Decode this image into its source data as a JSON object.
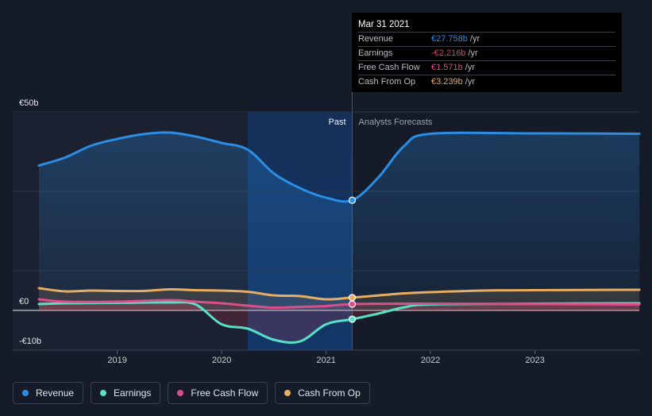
{
  "chart_data": {
    "type": "line",
    "x_unit": "year",
    "x_range": [
      2018.0,
      2024.0
    ],
    "ylim": [
      -10,
      50
    ],
    "y_ticks": [
      {
        "value": 50,
        "label": "€50b"
      },
      {
        "value": 0,
        "label": "€0"
      },
      {
        "value": -10,
        "label": "-€10b"
      }
    ],
    "x_ticks": [
      {
        "value": 2019,
        "label": "2019"
      },
      {
        "value": 2020,
        "label": "2020"
      },
      {
        "value": 2021,
        "label": "2021"
      },
      {
        "value": 2022,
        "label": "2022"
      },
      {
        "value": 2023,
        "label": "2023"
      }
    ],
    "past_label": "Past",
    "forecast_label": "Analysts Forecasts",
    "past_end": 2021.25,
    "highlight_start": 2020.25,
    "series": [
      {
        "name": "Revenue",
        "color": "#2b8de3",
        "points": [
          [
            2018.25,
            36.5
          ],
          [
            2018.5,
            38.5
          ],
          [
            2018.75,
            41.5
          ],
          [
            2019.0,
            43.2
          ],
          [
            2019.25,
            44.4
          ],
          [
            2019.5,
            44.8
          ],
          [
            2019.75,
            43.8
          ],
          [
            2020.0,
            42.2
          ],
          [
            2020.25,
            40.5
          ],
          [
            2020.5,
            34.5
          ],
          [
            2020.75,
            30.8
          ],
          [
            2021.0,
            28.4
          ],
          [
            2021.25,
            27.758
          ],
          [
            2021.5,
            33.5
          ],
          [
            2021.75,
            41.5
          ],
          [
            2022.0,
            44.5
          ],
          [
            2023.0,
            44.6
          ],
          [
            2024.0,
            44.5
          ]
        ]
      },
      {
        "name": "Earnings",
        "color": "#57e0c6",
        "points": [
          [
            2018.25,
            1.6
          ],
          [
            2018.5,
            1.8
          ],
          [
            2019.0,
            1.9
          ],
          [
            2019.5,
            2.0
          ],
          [
            2019.75,
            1.5
          ],
          [
            2020.0,
            -3.5
          ],
          [
            2020.25,
            -4.6
          ],
          [
            2020.5,
            -7.4
          ],
          [
            2020.75,
            -7.8
          ],
          [
            2021.0,
            -3.5
          ],
          [
            2021.25,
            -2.216
          ],
          [
            2021.5,
            -0.8
          ],
          [
            2021.75,
            0.8
          ],
          [
            2022.0,
            1.5
          ],
          [
            2023.0,
            1.7
          ],
          [
            2024.0,
            1.8
          ]
        ]
      },
      {
        "name": "Free Cash Flow",
        "color": "#d94f8b",
        "points": [
          [
            2018.25,
            2.8
          ],
          [
            2018.5,
            2.2
          ],
          [
            2019.0,
            2.2
          ],
          [
            2019.5,
            2.6
          ],
          [
            2019.75,
            2.2
          ],
          [
            2020.0,
            1.8
          ],
          [
            2020.25,
            1.2
          ],
          [
            2020.5,
            0.7
          ],
          [
            2020.75,
            0.9
          ],
          [
            2021.0,
            1.1
          ],
          [
            2021.25,
            1.571
          ],
          [
            2021.75,
            1.7
          ],
          [
            2022.0,
            1.7
          ],
          [
            2023.0,
            1.6
          ],
          [
            2024.0,
            1.5
          ]
        ]
      },
      {
        "name": "Cash From Op",
        "color": "#e7ad62",
        "points": [
          [
            2018.25,
            5.6
          ],
          [
            2018.5,
            4.8
          ],
          [
            2018.75,
            5.0
          ],
          [
            2019.0,
            4.9
          ],
          [
            2019.25,
            4.9
          ],
          [
            2019.5,
            5.3
          ],
          [
            2019.75,
            5.1
          ],
          [
            2020.0,
            5.0
          ],
          [
            2020.25,
            4.7
          ],
          [
            2020.5,
            3.8
          ],
          [
            2020.75,
            3.6
          ],
          [
            2021.0,
            2.8
          ],
          [
            2021.25,
            3.239
          ],
          [
            2021.75,
            4.3
          ],
          [
            2022.0,
            4.6
          ],
          [
            2022.5,
            5.0
          ],
          [
            2023.0,
            5.1
          ],
          [
            2024.0,
            5.2
          ]
        ]
      }
    ]
  },
  "tooltip": {
    "date": "Mar 31 2021",
    "rows": [
      {
        "label": "Revenue",
        "value": "€27.758b",
        "unit": "/yr",
        "color": "#2b8de3"
      },
      {
        "label": "Earnings",
        "value": "-€2.216b",
        "unit": "/yr",
        "color": "#e2454f"
      },
      {
        "label": "Free Cash Flow",
        "value": "€1.571b",
        "unit": "/yr",
        "color": "#d94f8b"
      },
      {
        "label": "Cash From Op",
        "value": "€3.239b",
        "unit": "/yr",
        "color": "#e7ad62"
      }
    ]
  },
  "legend": [
    {
      "label": "Revenue",
      "color": "#2b8de3"
    },
    {
      "label": "Earnings",
      "color": "#57e0c6"
    },
    {
      "label": "Free Cash Flow",
      "color": "#d94f8b"
    },
    {
      "label": "Cash From Op",
      "color": "#e7ad62"
    }
  ]
}
